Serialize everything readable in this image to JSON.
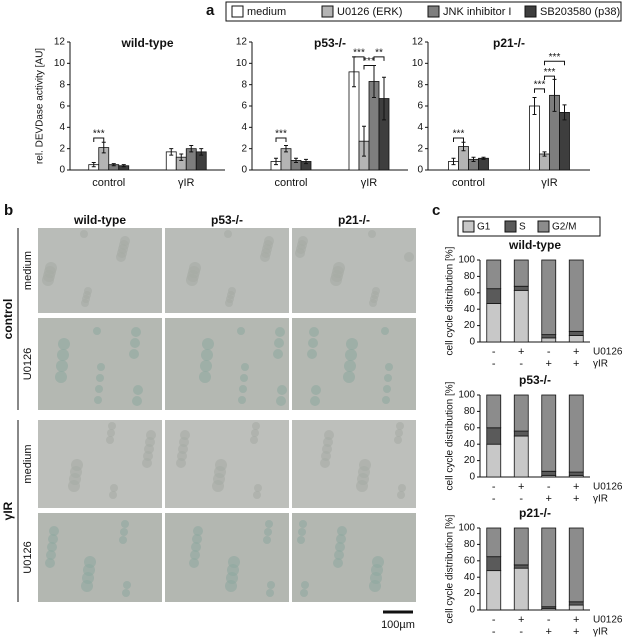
{
  "panel_labels": [
    "a",
    "b",
    "c"
  ],
  "chart_data": [
    {
      "type": "bar",
      "title": "wild-type",
      "ylabel": "rel. DEVDase activity [AU]",
      "categories": [
        "control",
        "γIR"
      ],
      "ylim": [
        0,
        12
      ],
      "yticks": [
        0,
        2,
        4,
        6,
        8,
        10,
        12
      ],
      "series": [
        {
          "name": "medium",
          "color": "#ffffff",
          "values": [
            0.5,
            1.7
          ],
          "errors": [
            0.2,
            0.3
          ]
        },
        {
          "name": "U0126 (ERK)",
          "color": "#b4b4b4",
          "values": [
            2.1,
            1.2
          ],
          "errors": [
            0.5,
            0.3
          ]
        },
        {
          "name": "JNK inhibitor I",
          "color": "#7e7e7e",
          "values": [
            0.5,
            2.0
          ],
          "errors": [
            0.1,
            0.3
          ]
        },
        {
          "name": "SB203580 (p38)",
          "color": "#3e3e3e",
          "values": [
            0.4,
            1.7
          ],
          "errors": [
            0.1,
            0.3
          ]
        }
      ],
      "annotations": [
        "***"
      ]
    },
    {
      "type": "bar",
      "title": "p53-/-",
      "categories": [
        "control",
        "γIR"
      ],
      "ylim": [
        0,
        12
      ],
      "yticks": [
        0,
        2,
        4,
        6,
        8,
        10,
        12
      ],
      "series": [
        {
          "name": "medium",
          "color": "#ffffff",
          "values": [
            0.8,
            9.2
          ],
          "errors": [
            0.3,
            1.4
          ]
        },
        {
          "name": "U0126 (ERK)",
          "color": "#b4b4b4",
          "values": [
            2.0,
            2.7
          ],
          "errors": [
            0.3,
            1.4
          ]
        },
        {
          "name": "JNK inhibitor I",
          "color": "#7e7e7e",
          "values": [
            0.9,
            8.3
          ],
          "errors": [
            0.2,
            1.5
          ]
        },
        {
          "name": "SB203580 (p38)",
          "color": "#3e3e3e",
          "values": [
            0.8,
            6.7
          ],
          "errors": [
            0.2,
            2.0
          ]
        }
      ],
      "annotations": [
        "***",
        "***",
        "***",
        "**"
      ]
    },
    {
      "type": "bar",
      "title": "p21-/-",
      "categories": [
        "control",
        "γIR"
      ],
      "ylim": [
        0,
        12
      ],
      "yticks": [
        0,
        2,
        4,
        6,
        8,
        10,
        12
      ],
      "series": [
        {
          "name": "medium",
          "color": "#ffffff",
          "values": [
            0.8,
            6.0
          ],
          "errors": [
            0.3,
            0.8
          ]
        },
        {
          "name": "U0126 (ERK)",
          "color": "#b4b4b4",
          "values": [
            2.2,
            1.5
          ],
          "errors": [
            0.4,
            0.2
          ]
        },
        {
          "name": "JNK inhibitor I",
          "color": "#7e7e7e",
          "values": [
            1.0,
            7.0
          ],
          "errors": [
            0.2,
            1.5
          ]
        },
        {
          "name": "SB203580 (p38)",
          "color": "#3e3e3e",
          "values": [
            1.1,
            5.4
          ],
          "errors": [
            0.1,
            0.7
          ]
        }
      ],
      "annotations": [
        "***",
        "***",
        "***",
        "***"
      ]
    },
    {
      "type": "stacked_bar",
      "title": "wild-type",
      "ylabel": "cell cycle distribution [%]",
      "ylim": [
        0,
        100
      ],
      "yticks": [
        0,
        20,
        40,
        60,
        80,
        100
      ],
      "conditions": [
        {
          "name": "U0126",
          "values": [
            "-",
            "+",
            "-",
            "+"
          ]
        },
        {
          "name": "γIR",
          "values": [
            "-",
            "-",
            "+",
            "+"
          ]
        }
      ],
      "series": [
        {
          "name": "G1",
          "color": "#c8c8c8",
          "values": [
            47,
            63,
            5,
            8
          ]
        },
        {
          "name": "S",
          "color": "#5a5a5a",
          "values": [
            18,
            5,
            4,
            5
          ]
        },
        {
          "name": "G2/M",
          "color": "#8c8c8c",
          "values": [
            35,
            32,
            91,
            87
          ]
        }
      ]
    },
    {
      "type": "stacked_bar",
      "title": "p53-/-",
      "ylabel": "cell cycle distribution [%]",
      "ylim": [
        0,
        100
      ],
      "yticks": [
        0,
        20,
        40,
        60,
        80,
        100
      ],
      "conditions": [
        {
          "name": "U0126",
          "values": [
            "-",
            "+",
            "-",
            "+"
          ]
        },
        {
          "name": "γIR",
          "values": [
            "-",
            "-",
            "+",
            "+"
          ]
        }
      ],
      "series": [
        {
          "name": "G1",
          "color": "#c8c8c8",
          "values": [
            40,
            50,
            2,
            2
          ]
        },
        {
          "name": "S",
          "color": "#5a5a5a",
          "values": [
            20,
            6,
            5,
            4
          ]
        },
        {
          "name": "G2/M",
          "color": "#8c8c8c",
          "values": [
            40,
            44,
            93,
            94
          ]
        }
      ]
    },
    {
      "type": "stacked_bar",
      "title": "p21-/-",
      "ylabel": "cell cycle distribution [%]",
      "ylim": [
        0,
        100
      ],
      "yticks": [
        0,
        20,
        40,
        60,
        80,
        100
      ],
      "conditions": [
        {
          "name": "U0126",
          "values": [
            "-",
            "+",
            "-",
            "+"
          ]
        },
        {
          "name": "γIR",
          "values": [
            "-",
            "-",
            "+",
            "+"
          ]
        }
      ],
      "series": [
        {
          "name": "G1",
          "color": "#c8c8c8",
          "values": [
            48,
            51,
            2,
            6
          ]
        },
        {
          "name": "S",
          "color": "#5a5a5a",
          "values": [
            17,
            4,
            2,
            4
          ]
        },
        {
          "name": "G2/M",
          "color": "#8c8c8c",
          "values": [
            35,
            45,
            96,
            90
          ]
        }
      ]
    }
  ],
  "micrographs": {
    "columns": [
      "wild-type",
      "p53-/-",
      "p21-/-"
    ],
    "rows": [
      "medium",
      "U0126",
      "medium",
      "U0126"
    ],
    "groups": [
      "control",
      "γIR"
    ],
    "scale_bar": "100µm"
  }
}
